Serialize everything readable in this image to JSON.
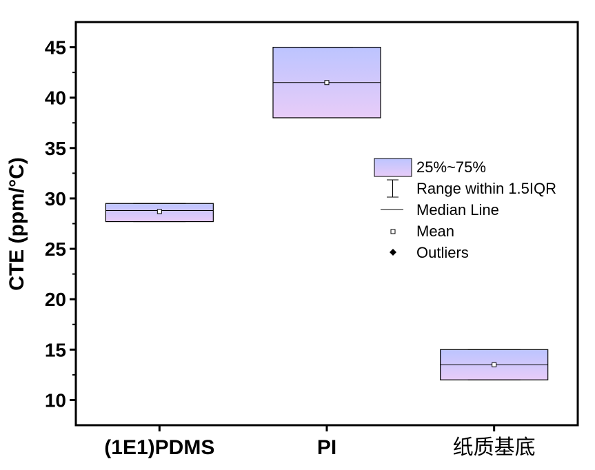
{
  "chart_data": {
    "type": "box",
    "ylabel": "CTE (ppm/°C)",
    "xlabel": "",
    "ylim": [
      7.5,
      47.5
    ],
    "yticks": [
      10,
      15,
      20,
      25,
      30,
      35,
      40,
      45
    ],
    "categories": [
      "(1E1)PDMS",
      "PI",
      "纸质基底"
    ],
    "boxes": [
      {
        "q1": 27.7,
        "q3": 29.5,
        "median": 28.8,
        "mean": 28.7,
        "whisker_low": 27.7,
        "whisker_high": 29.5
      },
      {
        "q1": 38.0,
        "q3": 45.0,
        "median": 41.5,
        "mean": 41.5,
        "whisker_low": 38.0,
        "whisker_high": 45.0
      },
      {
        "q1": 12.0,
        "q3": 15.0,
        "median": 13.5,
        "mean": 13.5,
        "whisker_low": 12.0,
        "whisker_high": 15.0
      }
    ],
    "legend": {
      "placement": "right",
      "items": [
        "25%~75%",
        "Range within 1.5IQR",
        "Median Line",
        "Mean",
        "Outliers"
      ]
    },
    "colors": {
      "box_top": "#bcc4ff",
      "box_bottom": "#e8ccf8",
      "line": "#000000"
    }
  }
}
